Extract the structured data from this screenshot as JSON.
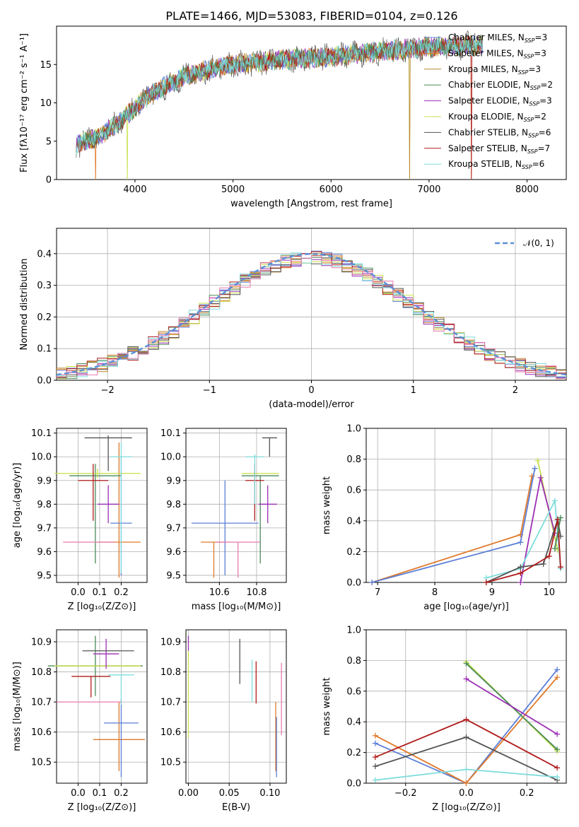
{
  "title": "PLATE=1466, MJD=53083, FIBERID=0104, z=0.126",
  "colors": {
    "Chabrier MILES": "#5b7fd6",
    "Salpeter MILES": "#e07a2b",
    "Kroupa MILES": "#b8862d",
    "Chabrier ELODIE": "#4a8a5a",
    "Salpeter ELODIE": "#9b2fb5",
    "Kroupa ELODIE": "#c8e04a",
    "Chabrier STELIB": "#555555",
    "Salpeter STELIB": "#b01c1c",
    "Kroupa STELIB": "#7fdcdc",
    "pink": "#e87ab0",
    "green": "#6bbf3a",
    "gaussian": "#5b8fd6"
  },
  "chart_data": [
    {
      "type": "line",
      "name": "spectrum",
      "xlabel": "wavelength [Angstrom, rest frame]",
      "ylabel": "Flux [fλ10⁻¹⁷ erg cm⁻² s⁻¹ A⁻¹]",
      "xlim": [
        3200,
        8400
      ],
      "ylim": [
        0,
        20
      ],
      "xticks": [
        "4000",
        "5000",
        "6000",
        "7000",
        "8000"
      ],
      "yticks": [
        "0",
        "5",
        "10",
        "15"
      ],
      "legend_position": "right",
      "legend": [
        {
          "label": "Chabrier MILES, N",
          "sub": "SSP",
          "val": "=3"
        },
        {
          "label": "Salpeter MILES, N",
          "sub": "SSP",
          "val": "=3"
        },
        {
          "label": "Kroupa MILES, N",
          "sub": "SSP",
          "val": "=3"
        },
        {
          "label": "Chabrier ELODIE, N",
          "sub": "SSP",
          "val": "=2"
        },
        {
          "label": "Salpeter ELODIE, N",
          "sub": "SSP",
          "val": "=3"
        },
        {
          "label": "Kroupa ELODIE, N",
          "sub": "SSP",
          "val": "=2"
        },
        {
          "label": "Chabrier STELIB, N",
          "sub": "SSP",
          "val": "=6"
        },
        {
          "label": "Salpeter STELIB, N",
          "sub": "SSP",
          "val": "=7"
        },
        {
          "label": "Kroupa STELIB, N",
          "sub": "SSP",
          "val": "=6"
        }
      ],
      "continuum": [
        [
          3400,
          4.5
        ],
        [
          3600,
          5.5
        ],
        [
          3800,
          7.0
        ],
        [
          3950,
          8.8
        ],
        [
          4100,
          10.5
        ],
        [
          4300,
          12.2
        ],
        [
          4500,
          13.4
        ],
        [
          4800,
          14.5
        ],
        [
          5000,
          15.0
        ],
        [
          5500,
          15.6
        ],
        [
          6000,
          16.0
        ],
        [
          6500,
          16.7
        ],
        [
          7000,
          17.3
        ],
        [
          7500,
          17.5
        ]
      ],
      "drops": [
        {
          "x": 3600,
          "series": "Salpeter MILES"
        },
        {
          "x": 3920,
          "series": "Kroupa ELODIE"
        },
        {
          "x": 6800,
          "series": "Kroupa ELODIE"
        },
        {
          "x": 6800,
          "series": "Kroupa MILES"
        },
        {
          "x": 7430,
          "series": "Salpeter MILES"
        },
        {
          "x": 7430,
          "series": "Salpeter STELIB"
        }
      ]
    },
    {
      "type": "bar",
      "name": "residual-histogram",
      "xlabel": "(data-model)/error",
      "ylabel": "Normed distribution",
      "xlim": [
        -2.5,
        2.5
      ],
      "ylim": [
        0,
        0.48
      ],
      "xticks": [
        "−2",
        "−1",
        "0",
        "1",
        "2"
      ],
      "yticks": [
        "0.0",
        "0.1",
        "0.2",
        "0.3",
        "0.4"
      ],
      "legend_label": "𝒩(0, 1)",
      "legend_position": "top-right",
      "bin_width": 0.1
    },
    {
      "type": "scatter",
      "name": "age-vs-Z",
      "xlabel": "Z [log₁₀(Z/Z⊙)]",
      "ylabel": "age  [log₁₀(age/yr)]",
      "xlim": [
        -0.1,
        0.32
      ],
      "ylim": [
        9.47,
        10.12
      ],
      "xticks": [
        "0.0",
        "0.1",
        "0.2"
      ],
      "yticks": [
        "9.5",
        "9.6",
        "9.7",
        "9.8",
        "9.9",
        "10.0",
        "10.1"
      ],
      "points": [
        {
          "x": 0.19,
          "y": 9.64,
          "xerr": 0.1,
          "yerr": [
            0.15,
            0.42
          ],
          "c": "Salpeter MILES"
        },
        {
          "x": 0.2,
          "y": 9.72,
          "xerr": 0.05,
          "yerr": [
            0.22,
            0.28
          ],
          "c": "Chabrier MILES"
        },
        {
          "x": 0.08,
          "y": 9.92,
          "xerr": 0.12,
          "yerr": [
            0.37,
            0.05
          ],
          "c": "Chabrier ELODIE"
        },
        {
          "x": 0.09,
          "y": 9.93,
          "xerr": 0.2,
          "yerr": [
            0.02,
            0.02
          ],
          "c": "Kroupa ELODIE"
        },
        {
          "x": 0.14,
          "y": 9.8,
          "xerr": 0.05,
          "yerr": [
            0.08,
            0.08
          ],
          "c": "Salpeter ELODIE"
        },
        {
          "x": 0.07,
          "y": 9.9,
          "xerr": 0.07,
          "yerr": [
            0.17,
            0.07
          ],
          "c": "Salpeter STELIB"
        },
        {
          "x": 0.14,
          "y": 10.08,
          "xerr": 0.11,
          "yerr": [
            0.14,
            0.01
          ],
          "c": "Chabrier STELIB"
        },
        {
          "x": 0.2,
          "y": 10.0,
          "xerr": 0.05,
          "yerr": [
            0.49,
            0.06
          ],
          "c": "Kroupa STELIB"
        },
        {
          "x": 0.05,
          "y": 9.64,
          "xerr": 0.12,
          "yerr": [
            0.0,
            0.0
          ],
          "c": "pink"
        }
      ]
    },
    {
      "type": "scatter",
      "name": "age-vs-mass",
      "xlabel": "mass [log₁₀(M/M⊙)]",
      "ylabel": "",
      "xlim": [
        10.42,
        10.96
      ],
      "ylim": [
        9.47,
        10.12
      ],
      "xticks": [
        "10.6",
        "10.8"
      ],
      "yticks": [
        "9.5",
        "9.6",
        "9.7",
        "9.8",
        "9.9",
        "10.0",
        "10.1"
      ],
      "points": [
        {
          "x": 10.57,
          "y": 9.64,
          "xerr": 0.07,
          "yerr": [
            0.15,
            0.0
          ],
          "c": "Salpeter MILES"
        },
        {
          "x": 10.63,
          "y": 9.72,
          "xerr": 0.18,
          "yerr": [
            0.22,
            0.18
          ],
          "c": "Chabrier MILES"
        },
        {
          "x": 10.82,
          "y": 9.92,
          "xerr": 0.1,
          "yerr": [
            0.37,
            0.0
          ],
          "c": "Chabrier ELODIE"
        },
        {
          "x": 10.82,
          "y": 9.93,
          "xerr": 0.1,
          "yerr": [
            0.0,
            0.0
          ],
          "c": "Kroupa ELODIE"
        },
        {
          "x": 10.86,
          "y": 9.8,
          "xerr": 0.05,
          "yerr": [
            0.08,
            0.08
          ],
          "c": "Salpeter ELODIE"
        },
        {
          "x": 10.79,
          "y": 9.9,
          "xerr": 0.05,
          "yerr": [
            0.17,
            0.07
          ],
          "c": "Salpeter STELIB"
        },
        {
          "x": 10.87,
          "y": 10.08,
          "xerr": 0.04,
          "yerr": [
            0.08,
            0.0
          ],
          "c": "Chabrier STELIB"
        },
        {
          "x": 10.79,
          "y": 10.0,
          "xerr": 0.05,
          "yerr": [
            0.2,
            0.01
          ],
          "c": "Kroupa STELIB"
        },
        {
          "x": 10.7,
          "y": 9.64,
          "xerr": 0.12,
          "yerr": [
            0.15,
            0.0
          ],
          "c": "pink"
        }
      ]
    },
    {
      "type": "line",
      "name": "mass-weight-vs-age",
      "xlabel": "age  [log₁₀(age/yr)]",
      "ylabel": "mass weight",
      "xlim": [
        6.8,
        10.3
      ],
      "ylim": [
        0,
        1
      ],
      "xticks": [
        "7",
        "8",
        "9",
        "10"
      ],
      "yticks": [
        "0.0",
        "0.2",
        "0.4",
        "0.6",
        "0.8",
        "1.0"
      ],
      "series": [
        {
          "c": "Salpeter MILES",
          "pts": [
            [
              6.9,
              0.0
            ],
            [
              9.5,
              0.31
            ],
            [
              9.7,
              0.69
            ]
          ]
        },
        {
          "c": "Chabrier MILES",
          "pts": [
            [
              6.9,
              0.0
            ],
            [
              9.5,
              0.26
            ],
            [
              9.75,
              0.74
            ]
          ]
        },
        {
          "c": "Kroupa ELODIE",
          "pts": [
            [
              9.8,
              0.79
            ],
            [
              10.15,
              0.21
            ]
          ]
        },
        {
          "c": "Salpeter ELODIE",
          "pts": [
            [
              9.5,
              0.0
            ],
            [
              9.85,
              0.68
            ],
            [
              10.1,
              0.32
            ]
          ]
        },
        {
          "c": "Kroupa STELIB",
          "pts": [
            [
              8.9,
              0.03
            ],
            [
              9.5,
              0.09
            ],
            [
              10.1,
              0.53
            ],
            [
              10.2,
              0.09
            ]
          ]
        },
        {
          "c": "Chabrier STELIB",
          "pts": [
            [
              8.9,
              0.0
            ],
            [
              9.5,
              0.1
            ],
            [
              9.9,
              0.12
            ],
            [
              10.15,
              0.41
            ],
            [
              10.2,
              0.3
            ]
          ]
        },
        {
          "c": "Salpeter STELIB",
          "pts": [
            [
              8.9,
              0.0
            ],
            [
              9.5,
              0.06
            ],
            [
              10.0,
              0.17
            ],
            [
              10.15,
              0.41
            ],
            [
              10.2,
              0.1
            ]
          ]
        },
        {
          "c": "Chabrier ELODIE",
          "pts": [
            [
              10.1,
              0.22
            ],
            [
              10.2,
              0.42
            ]
          ]
        }
      ]
    },
    {
      "type": "scatter",
      "name": "mass-vs-Z",
      "xlabel": "Z [log₁₀(Z/Z⊙)]",
      "ylabel": "mass [log₁₀(M/M⊙)]",
      "xlim": [
        -0.1,
        0.32
      ],
      "ylim": [
        10.43,
        10.94
      ],
      "xticks": [
        "0.0",
        "0.1",
        "0.2"
      ],
      "yticks": [
        "10.5",
        "10.6",
        "10.7",
        "10.8",
        "10.9"
      ],
      "points": [
        {
          "x": 0.19,
          "y": 10.575,
          "xerr": 0.12,
          "yerr": [
            0.105,
            0.125
          ],
          "c": "Salpeter MILES"
        },
        {
          "x": 0.2,
          "y": 10.63,
          "xerr": 0.08,
          "yerr": [
            0.18,
            0.08
          ],
          "c": "Chabrier MILES"
        },
        {
          "x": 0.08,
          "y": 10.82,
          "xerr": 0.22,
          "yerr": [
            0.1,
            0.1
          ],
          "c": "Chabrier ELODIE"
        },
        {
          "x": 0.09,
          "y": 10.82,
          "xerr": 0.2,
          "yerr": [
            0.0,
            0.0
          ],
          "c": "Kroupa ELODIE"
        },
        {
          "x": 0.13,
          "y": 10.86,
          "xerr": 0.06,
          "yerr": [
            0.05,
            0.05
          ],
          "c": "Salpeter ELODIE"
        },
        {
          "x": 0.06,
          "y": 10.785,
          "xerr": 0.09,
          "yerr": [
            0.07,
            0.0
          ],
          "c": "Salpeter STELIB"
        },
        {
          "x": 0.14,
          "y": 10.87,
          "xerr": 0.12,
          "yerr": [
            0.0,
            0.0
          ],
          "c": "Chabrier STELIB"
        },
        {
          "x": 0.2,
          "y": 10.79,
          "xerr": 0.06,
          "yerr": [
            0.1,
            0.0
          ],
          "c": "Kroupa STELIB"
        },
        {
          "x": 0.05,
          "y": 10.7,
          "xerr": 0.15,
          "yerr": [
            0.0,
            0.0
          ],
          "c": "pink"
        }
      ]
    },
    {
      "type": "scatter",
      "name": "mass-vs-ebv",
      "xlabel": "E(B-V)",
      "ylabel": "",
      "xlim": [
        -0.003,
        0.12
      ],
      "ylim": [
        10.43,
        10.94
      ],
      "xticks": [
        "0.00",
        "0.05",
        "0.10"
      ],
      "yticks": [
        "10.5",
        "10.6",
        "10.7",
        "10.8",
        "10.9"
      ],
      "points": [
        {
          "x": 0.0,
          "y": 10.89,
          "yerr": [
            0.02,
            0.03
          ],
          "c": "Salpeter ELODIE"
        },
        {
          "x": 0.0,
          "y": 10.75,
          "yerr": [
            0.17,
            0.12
          ],
          "c": "Kroupa ELODIE"
        },
        {
          "x": 0.063,
          "y": 10.835,
          "yerr": [
            0.075,
            0.075
          ],
          "c": "Chabrier STELIB"
        },
        {
          "x": 0.078,
          "y": 10.77,
          "yerr": [
            0.07,
            0.07
          ],
          "c": "Kroupa STELIB"
        },
        {
          "x": 0.083,
          "y": 10.765,
          "yerr": [
            0.07,
            0.07
          ],
          "c": "Salpeter STELIB"
        },
        {
          "x": 0.107,
          "y": 10.575,
          "yerr": [
            0.105,
            0.125
          ],
          "c": "Salpeter MILES"
        },
        {
          "x": 0.108,
          "y": 10.55,
          "yerr": [
            0.1,
            0.1
          ],
          "c": "Chabrier MILES"
        },
        {
          "x": 0.114,
          "y": 10.71,
          "yerr": [
            0.12,
            0.12
          ],
          "c": "pink"
        }
      ]
    },
    {
      "type": "line",
      "name": "mass-weight-vs-Z",
      "xlabel": "Z [log₁₀(Z/Z⊙)]",
      "ylabel": "mass weight",
      "xlim": [
        -0.33,
        0.33
      ],
      "ylim": [
        0,
        1
      ],
      "xticks": [
        "−0.2",
        "0.0",
        "0.2"
      ],
      "yticks": [
        "0.0",
        "0.2",
        "0.4",
        "0.6",
        "0.8",
        "1.0"
      ],
      "series": [
        {
          "c": "Chabrier MILES",
          "pts": [
            [
              -0.3,
              0.26
            ],
            [
              0.0,
              0.0
            ],
            [
              0.3,
              0.74
            ]
          ]
        },
        {
          "c": "Salpeter MILES",
          "pts": [
            [
              -0.3,
              0.31
            ],
            [
              0.0,
              0.0
            ],
            [
              0.3,
              0.69
            ]
          ]
        },
        {
          "c": "Kroupa ELODIE",
          "pts": [
            [
              0.0,
              0.79
            ],
            [
              0.3,
              0.21
            ]
          ]
        },
        {
          "c": "Chabrier ELODIE",
          "pts": [
            [
              0.0,
              0.78
            ],
            [
              0.3,
              0.22
            ]
          ]
        },
        {
          "c": "Salpeter ELODIE",
          "pts": [
            [
              0.0,
              0.68
            ],
            [
              0.3,
              0.32
            ]
          ]
        },
        {
          "c": "Chabrier STELIB",
          "pts": [
            [
              -0.3,
              0.11
            ],
            [
              0.0,
              0.3
            ],
            [
              0.3,
              0.02
            ]
          ]
        },
        {
          "c": "Salpeter STELIB",
          "pts": [
            [
              -0.3,
              0.17
            ],
            [
              0.0,
              0.415
            ],
            [
              0.3,
              0.1
            ]
          ]
        },
        {
          "c": "Kroupa STELIB",
          "pts": [
            [
              -0.3,
              0.02
            ],
            [
              0.0,
              0.09
            ],
            [
              0.3,
              0.04
            ]
          ]
        }
      ]
    }
  ]
}
